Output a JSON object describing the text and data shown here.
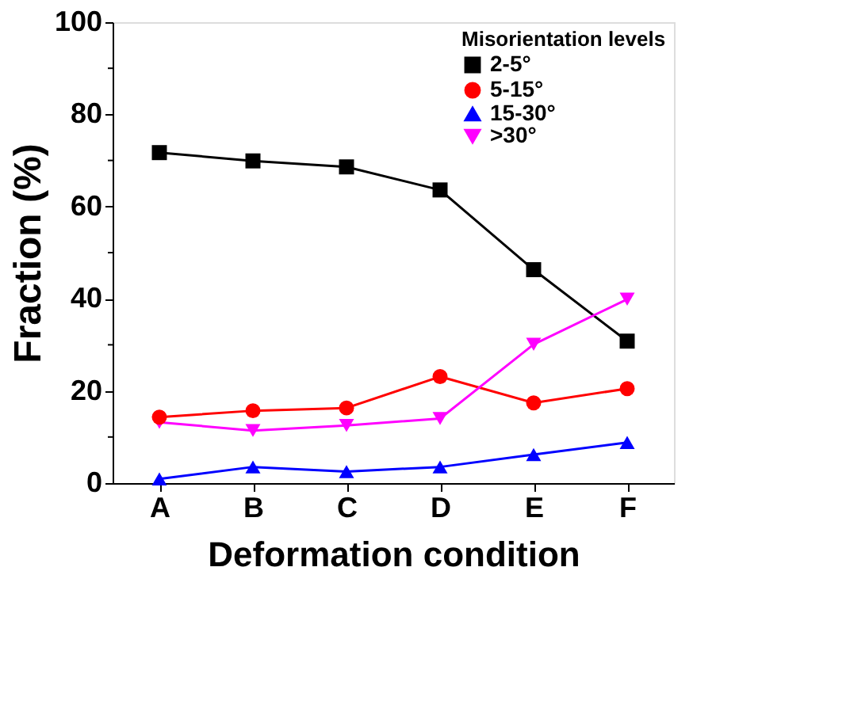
{
  "chart_data": {
    "type": "line",
    "xlabel": "Deformation condition",
    "ylabel": "Fraction (%)",
    "legend_title": "Misorientation levels",
    "legend": "top right",
    "grid": false,
    "line_style": "solid",
    "categories": [
      "A",
      "B",
      "C",
      "D",
      "E",
      "F"
    ],
    "ylim": [
      0,
      100
    ],
    "yticks": [
      0,
      {
        "value": 10,
        "label": null
      },
      20,
      {
        "value": 30,
        "label": null
      },
      40,
      {
        "value": 50,
        "label": null
      },
      60,
      {
        "value": 70,
        "label": null
      },
      80,
      {
        "value": 90,
        "label": null
      },
      100
    ],
    "series": [
      {
        "name": "2-5°",
        "color": "#000000",
        "marker": "square",
        "values": [
          71.7,
          69.9,
          68.6,
          63.6,
          46.3,
          30.8
        ]
      },
      {
        "name": "5-15°",
        "color": "#ff0000",
        "marker": "circle",
        "values": [
          14.3,
          15.7,
          16.3,
          23.1,
          17.4,
          20.5
        ]
      },
      {
        "name": "15-30°",
        "color": "#0000ff",
        "marker": "triangle",
        "values": [
          0.9,
          3.5,
          2.5,
          3.5,
          6.2,
          8.8
        ]
      },
      {
        "name": ">30°",
        "color": "#ff00ff",
        "marker": "triangle-down",
        "values": [
          13.2,
          11.4,
          12.5,
          14.0,
          30.1,
          39.9
        ]
      }
    ]
  }
}
